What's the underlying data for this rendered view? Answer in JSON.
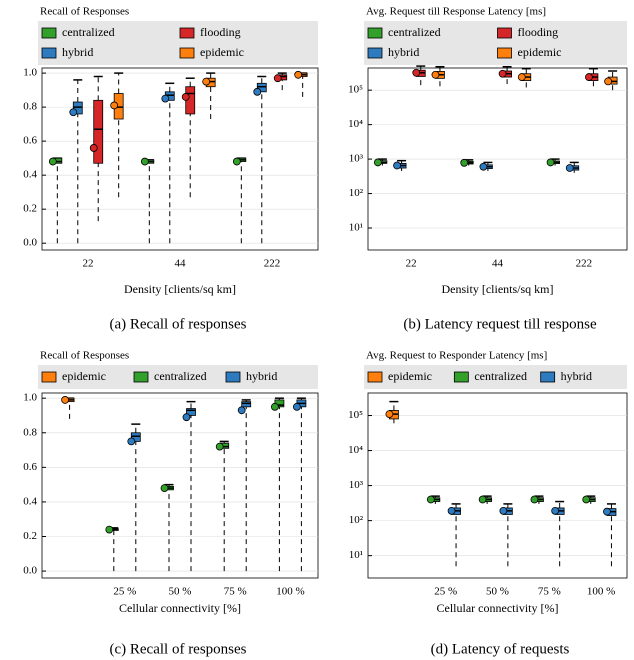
{
  "chart_data": [
    {
      "type": "box",
      "title": "Recall of Responses",
      "xlabel": "Density [clients/sq km]",
      "caption": "(a) Recall of responses",
      "categories": [
        "22",
        "44",
        "222"
      ],
      "ylim": [
        -0.04,
        1.03
      ],
      "yticks": [
        {
          "value": 0,
          "label": "0.0"
        },
        0.2,
        0.4,
        0.6,
        0.8,
        {
          "value": 1,
          "label": "1.0"
        }
      ],
      "log": false,
      "grid": true,
      "series": [
        {
          "name": "centralized",
          "color": "#33a02c",
          "boxes": [
            {
              "min": 0,
              "q1": 0.47,
              "median": 0.48,
              "q3": 0.5,
              "max": 0.5,
              "mean": 0.48
            },
            {
              "min": 0,
              "q1": 0.47,
              "median": 0.48,
              "q3": 0.49,
              "max": 0.49,
              "mean": 0.48
            },
            {
              "min": 0,
              "q1": 0.48,
              "median": 0.49,
              "q3": 0.5,
              "max": 0.5,
              "mean": 0.48
            }
          ]
        },
        {
          "name": "hybrid",
          "color": "#2f7bbf",
          "boxes": [
            {
              "min": 0,
              "q1": 0.76,
              "median": 0.8,
              "q3": 0.83,
              "max": 0.96,
              "mean": 0.77
            },
            {
              "min": 0,
              "q1": 0.84,
              "median": 0.87,
              "q3": 0.89,
              "max": 0.94,
              "mean": 0.85
            },
            {
              "min": 0,
              "q1": 0.89,
              "median": 0.92,
              "q3": 0.94,
              "max": 0.98,
              "mean": 0.89
            }
          ]
        },
        {
          "name": "flooding",
          "color": "#d62728",
          "boxes": [
            {
              "min": 0.13,
              "q1": 0.47,
              "median": 0.67,
              "q3": 0.84,
              "max": 0.98,
              "mean": 0.56
            },
            {
              "min": 0.27,
              "q1": 0.76,
              "median": 0.88,
              "q3": 0.92,
              "max": 0.97,
              "mean": 0.86
            },
            {
              "min": 0.9,
              "q1": 0.96,
              "median": 0.98,
              "q3": 0.99,
              "max": 1,
              "mean": 0.97
            }
          ]
        },
        {
          "name": "epidemic",
          "color": "#ff7f0e",
          "boxes": [
            {
              "min": 0.27,
              "q1": 0.73,
              "median": 0.8,
              "q3": 0.88,
              "max": 1,
              "mean": 0.81
            },
            {
              "min": 0.73,
              "q1": 0.92,
              "median": 0.95,
              "q3": 0.97,
              "max": 1,
              "mean": 0.95
            },
            {
              "min": 0.86,
              "q1": 0.98,
              "median": 0.99,
              "q3": 1,
              "max": 1,
              "mean": 0.99
            }
          ]
        }
      ]
    },
    {
      "type": "box",
      "title": "Avg. Request till Response Latency [ms]",
      "xlabel": "Density [clients/sq km]",
      "caption": "(b) Latency request till response",
      "categories": [
        "22",
        "44",
        "222"
      ],
      "ylim": [
        2.3,
        440000
      ],
      "yticks": [
        {
          "value": 10,
          "label": "10¹"
        },
        {
          "value": 100,
          "label": "10²"
        },
        {
          "value": 1000,
          "label": "10³"
        },
        {
          "value": 10000,
          "label": "10⁴"
        },
        {
          "value": 100000,
          "label": "10⁵"
        }
      ],
      "log": true,
      "grid": true,
      "series": [
        {
          "name": "centralized",
          "color": "#33a02c",
          "boxes": [
            {
              "min": 650,
              "q1": 750,
              "median": 800,
              "q3": 900,
              "max": 1000,
              "mean": 800
            },
            {
              "min": 650,
              "q1": 720,
              "median": 780,
              "q3": 860,
              "max": 950,
              "mean": 780
            },
            {
              "min": 650,
              "q1": 740,
              "median": 800,
              "q3": 880,
              "max": 1000,
              "mean": 800
            }
          ]
        },
        {
          "name": "hybrid",
          "color": "#2f7bbf",
          "boxes": [
            {
              "min": 450,
              "q1": 550,
              "median": 650,
              "q3": 750,
              "max": 900,
              "mean": 650
            },
            {
              "min": 450,
              "q1": 530,
              "median": 600,
              "q3": 680,
              "max": 800,
              "mean": 600
            },
            {
              "min": 400,
              "q1": 480,
              "median": 550,
              "q3": 640,
              "max": 800,
              "mean": 550
            }
          ]
        },
        {
          "name": "flooding",
          "color": "#d62728",
          "boxes": [
            {
              "min": 140000,
              "q1": 250000,
              "median": 320000,
              "q3": 380000,
              "max": 500000,
              "mean": 320000
            },
            {
              "min": 150000,
              "q1": 240000,
              "median": 300000,
              "q3": 360000,
              "max": 480000,
              "mean": 300000
            },
            {
              "min": 130000,
              "q1": 190000,
              "median": 240000,
              "q3": 300000,
              "max": 420000,
              "mean": 240000
            }
          ]
        },
        {
          "name": "epidemic",
          "color": "#ff7f0e",
          "boxes": [
            {
              "min": 130000,
              "q1": 220000,
              "median": 280000,
              "q3": 350000,
              "max": 480000,
              "mean": 280000
            },
            {
              "min": 120000,
              "q1": 190000,
              "median": 240000,
              "q3": 300000,
              "max": 420000,
              "mean": 240000
            },
            {
              "min": 100000,
              "q1": 150000,
              "median": 180000,
              "q3": 240000,
              "max": 360000,
              "mean": 180000
            }
          ]
        }
      ]
    },
    {
      "type": "box",
      "title": "Recall of Responses",
      "xlabel": "Cellular connectivity [%]",
      "caption": "(c) Recall of responses",
      "categories": [
        null,
        "25 %",
        "50 %",
        "75 %",
        "100 %"
      ],
      "ylim": [
        -0.04,
        1.03
      ],
      "yticks": [
        {
          "value": 0,
          "label": "0.0"
        },
        0.2,
        0.4,
        0.6,
        0.8,
        {
          "value": 1,
          "label": "1.0"
        }
      ],
      "log": false,
      "grid": true,
      "series": [
        {
          "name": "epidemic",
          "color": "#ff7f0e",
          "boxes": [
            {
              "min": 0.88,
              "q1": 0.98,
              "median": 0.99,
              "q3": 1,
              "max": 1,
              "mean": 0.99
            },
            null,
            null,
            null,
            null
          ]
        },
        {
          "name": "centralized",
          "color": "#33a02c",
          "boxes": [
            null,
            {
              "min": 0,
              "q1": 0.235,
              "median": 0.24,
              "q3": 0.245,
              "max": 0.25,
              "mean": 0.24
            },
            {
              "min": 0,
              "q1": 0.47,
              "median": 0.48,
              "q3": 0.49,
              "max": 0.5,
              "mean": 0.48
            },
            {
              "min": 0,
              "q1": 0.71,
              "median": 0.72,
              "q3": 0.74,
              "max": 0.75,
              "mean": 0.72
            },
            {
              "min": 0,
              "q1": 0.95,
              "median": 0.96,
              "q3": 0.99,
              "max": 1,
              "mean": 0.95
            }
          ]
        },
        {
          "name": "hybrid",
          "color": "#2f7bbf",
          "boxes": [
            null,
            {
              "min": 0,
              "q1": 0.75,
              "median": 0.78,
              "q3": 0.8,
              "max": 0.85,
              "mean": 0.75
            },
            {
              "min": 0,
              "q1": 0.9,
              "median": 0.93,
              "q3": 0.94,
              "max": 0.98,
              "mean": 0.89
            },
            {
              "min": 0,
              "q1": 0.95,
              "median": 0.97,
              "q3": 0.98,
              "max": 0.99,
              "mean": 0.93
            },
            {
              "min": 0,
              "q1": 0.95,
              "median": 0.97,
              "q3": 0.99,
              "max": 1,
              "mean": 0.95
            }
          ]
        }
      ]
    },
    {
      "type": "box",
      "title": "Avg. Request to Responder Latency [ms]",
      "xlabel": "Cellular connectivity [%]",
      "caption": "(d) Latency of requests",
      "categories": [
        null,
        "25 %",
        "50 %",
        "75 %",
        "100 %"
      ],
      "ylim": [
        2.3,
        440000
      ],
      "yticks": [
        {
          "value": 10,
          "label": "10¹"
        },
        {
          "value": 100,
          "label": "10²"
        },
        {
          "value": 1000,
          "label": "10³"
        },
        {
          "value": 10000,
          "label": "10⁴"
        },
        {
          "value": 100000,
          "label": "10⁵"
        }
      ],
      "log": true,
      "grid": true,
      "series": [
        {
          "name": "epidemic",
          "color": "#ff7f0e",
          "boxes": [
            {
              "min": 60000,
              "q1": 80000,
              "median": 110000,
              "q3": 140000,
              "max": 250000,
              "mean": 110000
            },
            null,
            null,
            null,
            null
          ]
        },
        {
          "name": "centralized",
          "color": "#33a02c",
          "boxes": [
            null,
            {
              "min": 300,
              "q1": 350,
              "median": 400,
              "q3": 450,
              "max": 500,
              "mean": 400
            },
            {
              "min": 300,
              "q1": 350,
              "median": 400,
              "q3": 450,
              "max": 500,
              "mean": 400
            },
            {
              "min": 300,
              "q1": 350,
              "median": 400,
              "q3": 450,
              "max": 500,
              "mean": 400
            },
            {
              "min": 300,
              "q1": 350,
              "median": 400,
              "q3": 450,
              "max": 500,
              "mean": 400
            }
          ]
        },
        {
          "name": "hybrid",
          "color": "#2f7bbf",
          "boxes": [
            null,
            {
              "min": 5,
              "q1": 150,
              "median": 190,
              "q3": 230,
              "max": 300,
              "mean": 190
            },
            {
              "min": 5,
              "q1": 150,
              "median": 190,
              "q3": 230,
              "max": 300,
              "mean": 190
            },
            {
              "min": 5,
              "q1": 150,
              "median": 190,
              "q3": 230,
              "max": 350,
              "mean": 190
            },
            {
              "min": 5,
              "q1": 140,
              "median": 180,
              "q3": 220,
              "max": 300,
              "mean": 180
            }
          ]
        }
      ]
    }
  ]
}
